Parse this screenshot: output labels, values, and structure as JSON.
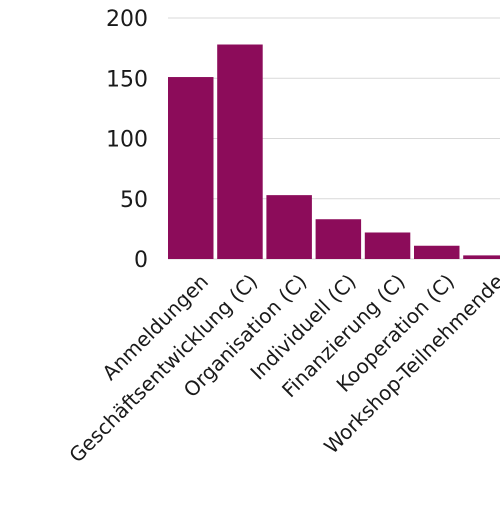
{
  "chart_data": {
    "type": "bar",
    "categories": [
      "Anmeldungen",
      "Geschäftsentwicklung (C)",
      "Organisation (C)",
      "Individuell (C)",
      "Finanzierung (C)",
      "Kooperation (C)",
      "Workshop-Teilnehmende"
    ],
    "values": [
      151,
      178,
      53,
      33,
      22,
      11,
      3
    ],
    "yticks": [
      "0",
      "50",
      "100",
      "150",
      "200"
    ],
    "ylim": [
      0,
      200
    ],
    "grid": true,
    "bar_color": "#8c0c5a"
  }
}
